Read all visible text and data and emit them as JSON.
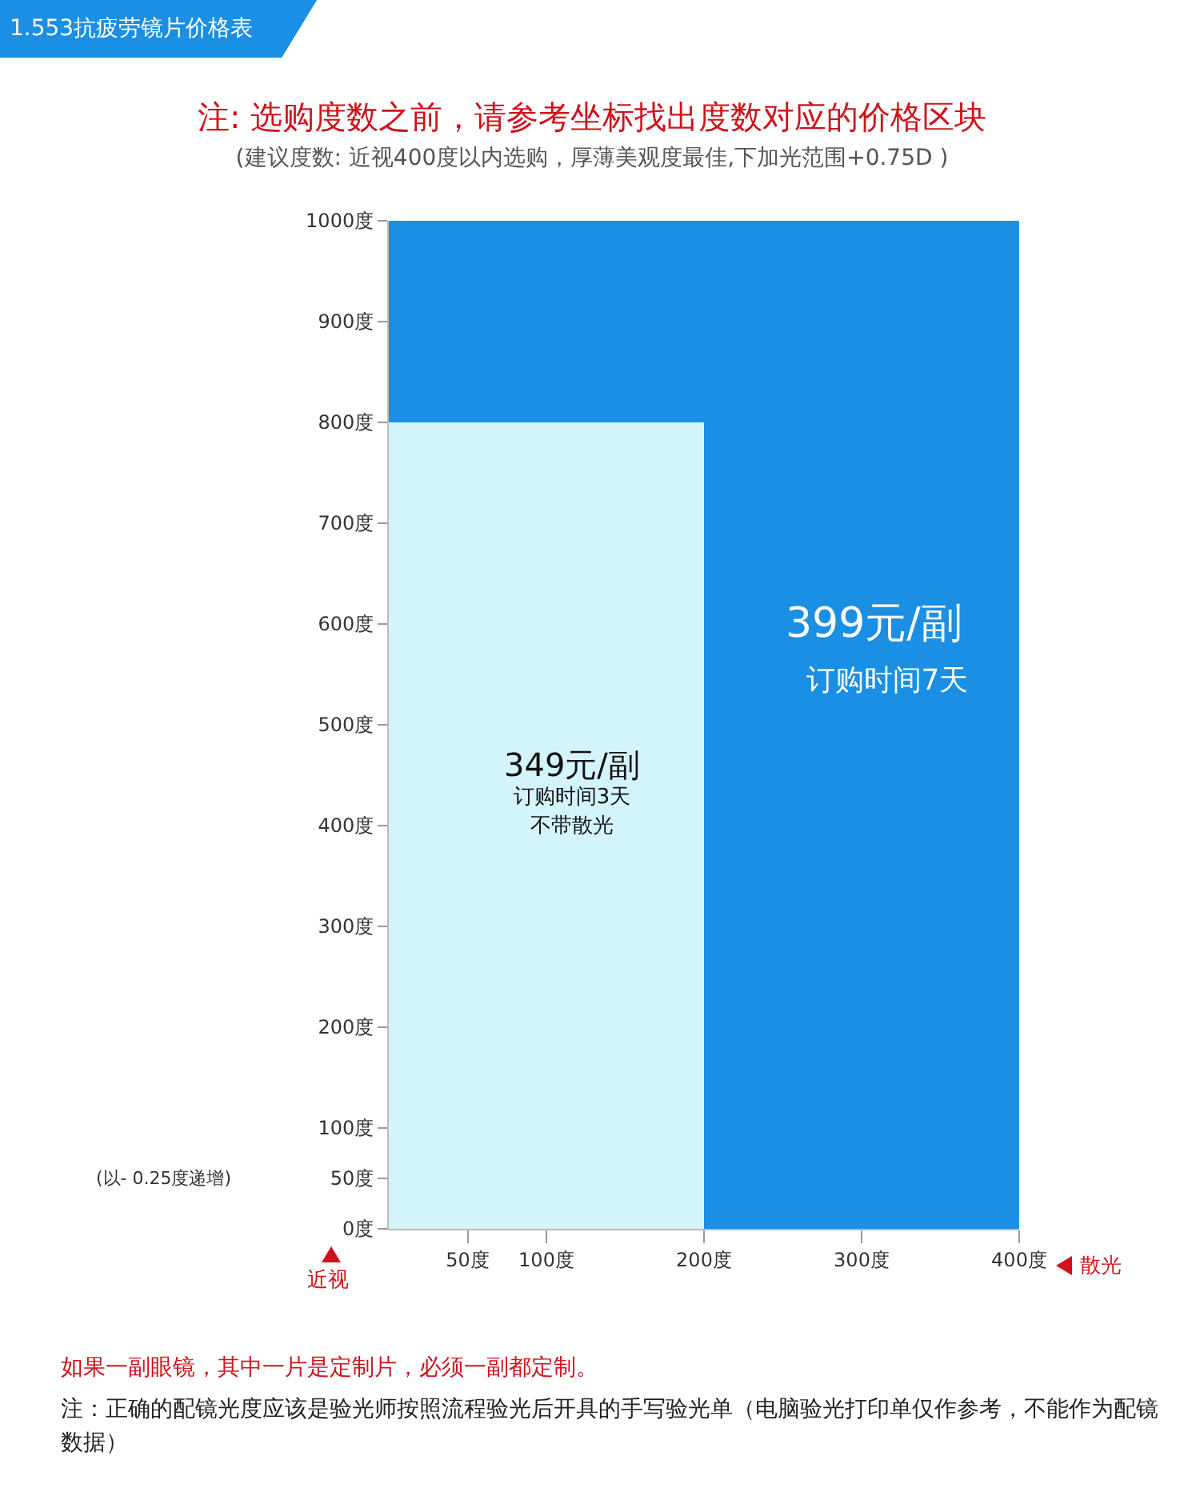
{
  "chart_data": {
    "type": "area",
    "title": "1.553抗疲劳镜片价格表",
    "subtitle": "注: 选购度数之前，请参考坐标找出度数对应的价格区块",
    "xlabel": "散光",
    "ylabel": "近视",
    "series": [
      {
        "name": "399元/副",
        "color": "#1a8fe3",
        "x": [
          0,
          400
        ],
        "values": [
          1000,
          1000
        ]
      },
      {
        "name": "349元/副",
        "color": "#d4f4fc",
        "x": [
          0,
          200
        ],
        "values": [
          800,
          800
        ]
      }
    ],
    "xlim": [
      0,
      400
    ],
    "ylim": [
      0,
      1000
    ],
    "xticks": [
      {
        "value": 50,
        "label": "50度"
      },
      {
        "value": 100,
        "label": "100度"
      },
      {
        "value": 200,
        "label": "200度"
      },
      {
        "value": 300,
        "label": "300度"
      },
      {
        "value": 400,
        "label": "400度"
      }
    ],
    "yticks": [
      {
        "value": 0,
        "label": "0度"
      },
      {
        "value": 50,
        "label": "50度"
      },
      {
        "value": 100,
        "label": "100度"
      },
      {
        "value": 200,
        "label": "200度"
      },
      {
        "value": 300,
        "label": "300度"
      },
      {
        "value": 400,
        "label": "400度"
      },
      {
        "value": 500,
        "label": "500度"
      },
      {
        "value": 600,
        "label": "600度"
      },
      {
        "value": 700,
        "label": "700度"
      },
      {
        "value": 800,
        "label": "800度"
      },
      {
        "value": 900,
        "label": "900度"
      },
      {
        "value": 1000,
        "label": "1000度"
      }
    ],
    "annotations": [
      "(建议度数: 近视400度以内选购，厚薄美观度最佳,下加光范围+0.75D )",
      "(以- 0.25度递增)",
      "如果一副眼镜，其中一片是定制片，必须一副都定制。",
      "注：正确的配镜光度应该是验光师按照流程验光后开具的手写验光单（电脑验光打印单仅作参考，不能作为配镜数据）",
      "订购时间7天",
      "订购时间3天",
      "不带散光"
    ]
  }
}
